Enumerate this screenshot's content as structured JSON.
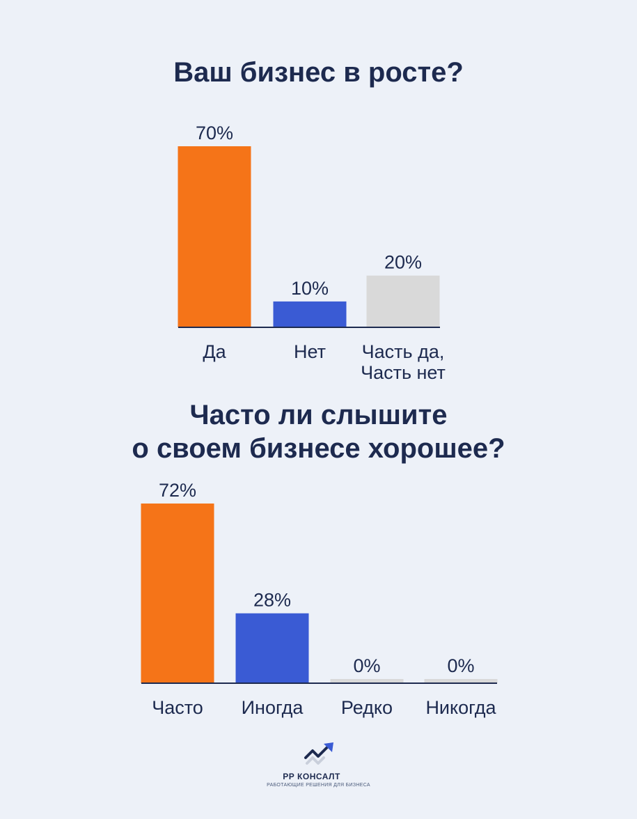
{
  "colors": {
    "background": "#edf1f8",
    "text": "#1d2a4f",
    "orange": "#f57418",
    "blue": "#3a5bd4",
    "gray": "#d9d9d9",
    "axis": "#1d2a4f"
  },
  "chart_data": [
    {
      "type": "bar",
      "title": "Ваш бизнес в росте?",
      "categories": [
        "Да",
        "Нет",
        "Часть да,\nЧасть нет"
      ],
      "values": [
        70,
        10,
        20
      ],
      "value_labels": [
        "70%",
        "10%",
        "20%"
      ],
      "bar_colors": [
        "#f57418",
        "#3a5bd4",
        "#d9d9d9"
      ],
      "ylim": [
        0,
        70
      ],
      "xlabel": "",
      "ylabel": "",
      "grid": false
    },
    {
      "type": "bar",
      "title": "Часто ли слышите\nо своем бизнесе хорошее?",
      "categories": [
        "Часто",
        "Иногда",
        "Редко",
        "Никогда"
      ],
      "values": [
        72,
        28,
        0,
        0
      ],
      "value_labels": [
        "72%",
        "28%",
        "0%",
        "0%"
      ],
      "bar_colors": [
        "#f57418",
        "#3a5bd4",
        "#d9d9d9",
        "#d9d9d9"
      ],
      "ylim": [
        0,
        72
      ],
      "xlabel": "",
      "ylabel": "",
      "grid": false
    }
  ],
  "logo": {
    "icon": "growth-arrow-icon",
    "name": "РР КОНСАЛТ",
    "tagline": "РАБОТАЮЩИЕ РЕШЕНИЯ ДЛЯ БИЗНЕСА"
  }
}
